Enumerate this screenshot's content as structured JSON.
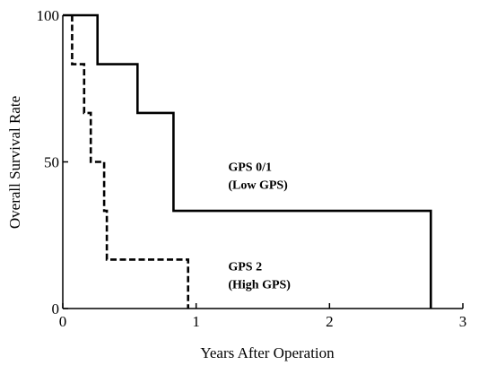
{
  "chart_data": {
    "type": "line",
    "step": true,
    "title": "",
    "xlabel": "Years After Operation",
    "ylabel": "Overall Survival Rate",
    "xlim": [
      0,
      3
    ],
    "ylim": [
      0,
      100
    ],
    "xticks": [
      0,
      1,
      2,
      3
    ],
    "xtick_labels": [
      "0",
      "1",
      "2",
      "3"
    ],
    "yticks": [
      0,
      50,
      100
    ],
    "ytick_labels": [
      "0",
      "50",
      "100"
    ],
    "grid": false,
    "series": [
      {
        "name": "GPS 0/1 (Low GPS)",
        "style": "solid",
        "color": "#000000",
        "x": [
          0,
          0.26,
          0.26,
          0.56,
          0.56,
          0.83,
          0.83,
          2.76,
          2.76
        ],
        "y": [
          100,
          100,
          83.3,
          83.3,
          66.7,
          66.7,
          33.3,
          33.3,
          0
        ]
      },
      {
        "name": "GPS 2 (High GPS)",
        "style": "dashed",
        "color": "#000000",
        "x": [
          0.07,
          0.07,
          0.16,
          0.16,
          0.21,
          0.21,
          0.31,
          0.31,
          0.33,
          0.33,
          0.94,
          0.94
        ],
        "y": [
          100,
          83.3,
          83.3,
          66.7,
          66.7,
          50,
          50,
          33.3,
          33.3,
          16.7,
          16.7,
          0
        ]
      }
    ],
    "annotations": [
      {
        "lines": [
          "GPS 0/1",
          "(Low GPS)"
        ],
        "x": 1.24,
        "y": 47
      },
      {
        "lines": [
          "GPS 2",
          "(High GPS)"
        ],
        "x": 1.24,
        "y": 13
      }
    ]
  }
}
